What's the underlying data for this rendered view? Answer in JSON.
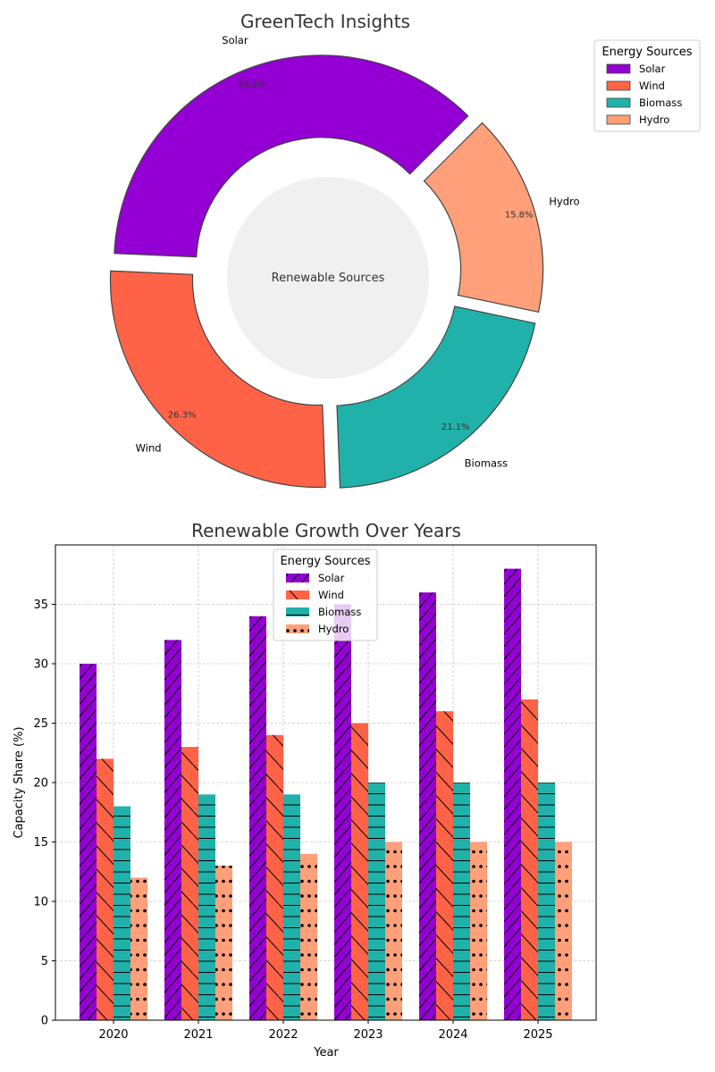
{
  "chart_data": [
    {
      "type": "pie",
      "title": "GreenTech Insights",
      "center_label": "Renewable Sources",
      "labels": [
        "Solar",
        "Wind",
        "Biomass",
        "Hydro"
      ],
      "values": [
        36.8,
        26.3,
        21.1,
        15.8
      ],
      "percent_labels": [
        "36.8%",
        "26.3%",
        "21.1%",
        "15.8%"
      ],
      "colors": [
        "#9400D3",
        "#FF6347",
        "#20B2AA",
        "#FFA07A"
      ],
      "legend": {
        "title": "Energy Sources",
        "placement": "upper-right-outside"
      },
      "donut": true
    },
    {
      "type": "bar",
      "title": "Renewable Growth Over Years",
      "xlabel": "Year",
      "ylabel": "Capacity Share (%)",
      "categories": [
        "2020",
        "2021",
        "2022",
        "2023",
        "2024",
        "2025"
      ],
      "ylim": [
        0,
        40
      ],
      "yticks": [
        0,
        5,
        10,
        15,
        20,
        25,
        30,
        35
      ],
      "grid": true,
      "legend": {
        "title": "Energy Sources",
        "placement": "upper-center"
      },
      "series": [
        {
          "name": "Solar",
          "values": [
            30,
            32,
            34,
            35,
            36,
            38
          ],
          "color": "#9400D3",
          "hatch": "forward-diagonal"
        },
        {
          "name": "Wind",
          "values": [
            22,
            23,
            24,
            25,
            26,
            27
          ],
          "color": "#FF6347",
          "hatch": "back-diagonal"
        },
        {
          "name": "Biomass",
          "values": [
            18,
            19,
            19,
            20,
            20,
            20
          ],
          "color": "#20B2AA",
          "hatch": "horizontal"
        },
        {
          "name": "Hydro",
          "values": [
            12,
            13,
            14,
            15,
            15,
            15
          ],
          "color": "#FFA07A",
          "hatch": "dots"
        }
      ]
    }
  ]
}
